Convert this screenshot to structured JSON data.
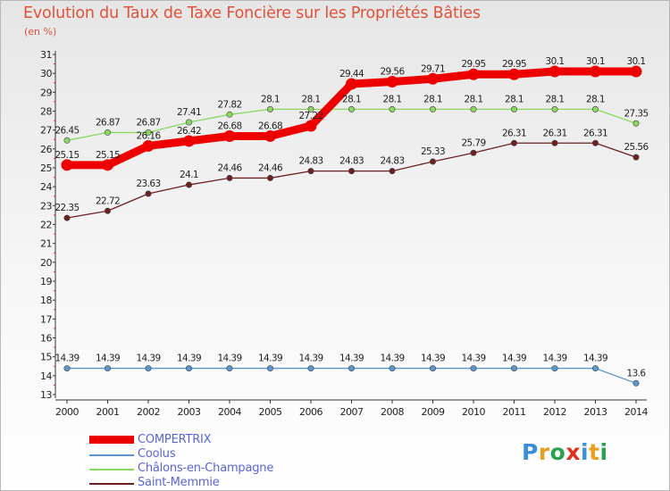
{
  "chart_data": {
    "type": "line",
    "title": "Evolution du Taux de Taxe Foncière sur les Propriétés Bâties",
    "subtitle": "(en %)",
    "categories": [
      "2000",
      "2001",
      "2002",
      "2003",
      "2004",
      "2005",
      "2006",
      "2007",
      "2008",
      "2009",
      "2010",
      "2011",
      "2012",
      "2013",
      "2014"
    ],
    "y_ticks": [
      "13",
      "14",
      "15",
      "16",
      "17",
      "18",
      "19",
      "20",
      "21",
      "22",
      "23",
      "24",
      "25",
      "26",
      "27",
      "28",
      "29",
      "30",
      "31"
    ],
    "ylim": [
      13,
      31
    ],
    "grid": false,
    "legend_position": "bottom-left",
    "series": [
      {
        "name": "COMPERTRIX",
        "color": "#ee0000",
        "bold": true,
        "values": [
          25.15,
          25.15,
          26.16,
          26.42,
          26.68,
          26.68,
          27.22,
          29.44,
          29.56,
          29.71,
          29.95,
          29.95,
          30.1,
          30.1,
          30.1
        ],
        "labels": [
          "25.15",
          "25.15",
          "26.16",
          "26.42",
          "26.68",
          "26.68",
          "27.22",
          "29.44",
          "29.56",
          "29.71",
          "29.95",
          "29.95",
          "30.1",
          "30.1",
          "30.1"
        ]
      },
      {
        "name": "Coolus",
        "color": "#5a96cc",
        "bold": false,
        "values": [
          14.39,
          14.39,
          14.39,
          14.39,
          14.39,
          14.39,
          14.39,
          14.39,
          14.39,
          14.39,
          14.39,
          14.39,
          14.39,
          14.39,
          13.6
        ],
        "labels": [
          "14.39",
          "14.39",
          "14.39",
          "14.39",
          "14.39",
          "14.39",
          "14.39",
          "14.39",
          "14.39",
          "14.39",
          "14.39",
          "14.39",
          "14.39",
          "14.39",
          "13.6"
        ]
      },
      {
        "name": "Châlons-en-Champagne",
        "color": "#8ad860",
        "bold": false,
        "values": [
          26.45,
          26.87,
          26.87,
          27.41,
          27.82,
          28.1,
          28.1,
          28.1,
          28.1,
          28.1,
          28.1,
          28.1,
          28.1,
          28.1,
          27.35
        ],
        "labels": [
          "26.45",
          "26.87",
          "26.87",
          "27.41",
          "27.82",
          "28.1",
          "28.1",
          "28.1",
          "28.1",
          "28.1",
          "28.1",
          "28.1",
          "28.1",
          "28.1",
          "27.35"
        ]
      },
      {
        "name": "Saint-Memmie",
        "color": "#6e2020",
        "bold": false,
        "values": [
          22.35,
          22.72,
          23.63,
          24.1,
          24.46,
          24.46,
          24.83,
          24.83,
          24.83,
          25.33,
          25.79,
          26.31,
          26.31,
          26.31,
          25.56
        ],
        "labels": [
          "22.35",
          "22.72",
          "23.63",
          "24.1",
          "24.46",
          "24.46",
          "24.83",
          "24.83",
          "24.83",
          "25.33",
          "25.79",
          "26.31",
          "26.31",
          "26.31",
          "25.56"
        ]
      }
    ]
  },
  "logo": {
    "text": "Proxiti",
    "letters": [
      "P",
      "r",
      "o",
      "x",
      "i",
      "t",
      "i"
    ],
    "colors": [
      "#3a8fd8",
      "#e8a020",
      "#2aa050",
      "#e03020",
      "#3a8fd8",
      "#e8a020",
      "#2aa050"
    ]
  }
}
